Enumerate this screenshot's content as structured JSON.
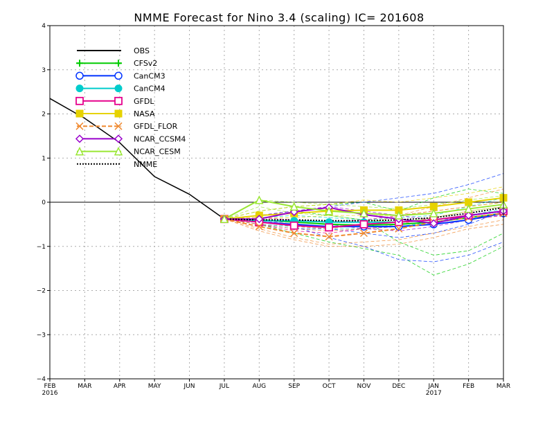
{
  "chart_data": {
    "type": "line",
    "title": "NMME Forecast for Nino 3.4 (scaling) IC= 201608",
    "xlabel": "",
    "ylabel": "",
    "ylim": [
      -4,
      4
    ],
    "yticks": [
      -4,
      -3,
      -2,
      -1,
      0,
      1,
      2,
      3,
      4
    ],
    "ytick_labels": [
      "−4",
      "−3",
      "−2",
      "−1",
      "0",
      "1",
      "2",
      "3",
      "4"
    ],
    "x_ticks": [
      {
        "label": "FEB",
        "year": "2016"
      },
      {
        "label": "MAR",
        "year": ""
      },
      {
        "label": "APR",
        "year": ""
      },
      {
        "label": "MAY",
        "year": ""
      },
      {
        "label": "JUN",
        "year": ""
      },
      {
        "label": "JUL",
        "year": ""
      },
      {
        "label": "AUG",
        "year": ""
      },
      {
        "label": "SEP",
        "year": ""
      },
      {
        "label": "OCT",
        "year": ""
      },
      {
        "label": "NOV",
        "year": ""
      },
      {
        "label": "DEC",
        "year": ""
      },
      {
        "label": "JAN",
        "year": "2017"
      },
      {
        "label": "FEB",
        "year": ""
      },
      {
        "label": "MAR",
        "year": ""
      }
    ],
    "grid": true,
    "legend_position": "top-left",
    "series": [
      {
        "name": "OBS",
        "color": "#000000",
        "marker": "none",
        "dash": "solid",
        "x": [
          "Feb 2016",
          "Mar 2016",
          "Apr 2016",
          "May 2016",
          "Jun 2016",
          "Jul 2016"
        ],
        "values": [
          2.35,
          1.9,
          1.35,
          0.58,
          0.18,
          -0.38
        ]
      },
      {
        "name": "CFSv2",
        "color": "#00cc00",
        "marker": "plus",
        "dash": "solid",
        "x": [
          "Jul 2016",
          "Aug 2016",
          "Sep 2016",
          "Oct 2016",
          "Nov 2016",
          "Dec 2016",
          "Jan 2017",
          "Feb 2017",
          "Mar 2017"
        ],
        "values": [
          -0.38,
          -0.4,
          -0.45,
          -0.5,
          -0.52,
          -0.5,
          -0.45,
          -0.35,
          -0.25
        ]
      },
      {
        "name": "CanCM3",
        "color": "#0033ff",
        "marker": "circle",
        "dash": "solid",
        "x": [
          "Jul 2016",
          "Aug 2016",
          "Sep 2016",
          "Oct 2016",
          "Nov 2016",
          "Dec 2016",
          "Jan 2017",
          "Feb 2017",
          "Mar 2017"
        ],
        "values": [
          -0.38,
          -0.45,
          -0.5,
          -0.55,
          -0.55,
          -0.55,
          -0.5,
          -0.4,
          -0.25
        ]
      },
      {
        "name": "CanCM4",
        "color": "#00cccc",
        "marker": "filled-circle",
        "dash": "solid",
        "x": [
          "Jul 2016",
          "Aug 2016",
          "Sep 2016",
          "Oct 2016",
          "Nov 2016",
          "Dec 2016",
          "Jan 2017",
          "Feb 2017",
          "Mar 2017"
        ],
        "values": [
          -0.38,
          -0.42,
          -0.42,
          -0.45,
          -0.45,
          -0.45,
          -0.4,
          -0.3,
          -0.2
        ]
      },
      {
        "name": "GFDL",
        "color": "#e6008c",
        "marker": "square",
        "dash": "solid",
        "x": [
          "Jul 2016",
          "Aug 2016",
          "Sep 2016",
          "Oct 2016",
          "Nov 2016",
          "Dec 2016",
          "Jan 2017",
          "Feb 2017",
          "Mar 2017"
        ],
        "values": [
          -0.38,
          -0.45,
          -0.53,
          -0.57,
          -0.5,
          -0.45,
          -0.4,
          -0.3,
          -0.2
        ]
      },
      {
        "name": "NASA",
        "color": "#e6d200",
        "marker": "filled-square",
        "dash": "solid",
        "x": [
          "Jul 2016",
          "Aug 2016",
          "Sep 2016",
          "Oct 2016",
          "Nov 2016",
          "Dec 2016",
          "Jan 2017",
          "Feb 2017",
          "Mar 2017"
        ],
        "values": [
          -0.38,
          -0.3,
          -0.25,
          -0.2,
          -0.18,
          -0.18,
          -0.1,
          0.0,
          0.1
        ]
      },
      {
        "name": "GFDL_FLOR",
        "color": "#f08a30",
        "marker": "x",
        "dash": "dashed",
        "x": [
          "Jul 2016",
          "Aug 2016",
          "Sep 2016",
          "Oct 2016",
          "Nov 2016",
          "Dec 2016",
          "Jan 2017",
          "Feb 2017",
          "Mar 2017"
        ],
        "values": [
          -0.38,
          -0.55,
          -0.7,
          -0.78,
          -0.7,
          -0.6,
          -0.45,
          -0.35,
          -0.25
        ]
      },
      {
        "name": "NCAR_CCSM4",
        "color": "#9900cc",
        "marker": "diamond",
        "dash": "solid",
        "x": [
          "Jul 2016",
          "Aug 2016",
          "Sep 2016",
          "Oct 2016",
          "Nov 2016",
          "Dec 2016",
          "Jan 2017",
          "Feb 2017",
          "Mar 2017"
        ],
        "values": [
          -0.38,
          -0.38,
          -0.22,
          -0.12,
          -0.28,
          -0.38,
          -0.48,
          -0.3,
          -0.2
        ]
      },
      {
        "name": "NCAR_CESM",
        "color": "#99e633",
        "marker": "triangle",
        "dash": "solid",
        "x": [
          "Jul 2016",
          "Aug 2016",
          "Sep 2016",
          "Oct 2016",
          "Nov 2016",
          "Dec 2016",
          "Jan 2017",
          "Feb 2017",
          "Mar 2017"
        ],
        "values": [
          -0.38,
          0.05,
          -0.1,
          -0.2,
          -0.25,
          -0.3,
          -0.25,
          -0.15,
          -0.05
        ]
      },
      {
        "name": "NMME",
        "color": "#000000",
        "marker": "none",
        "dash": "dotted",
        "x": [
          "Jul 2016",
          "Aug 2016",
          "Sep 2016",
          "Oct 2016",
          "Nov 2016",
          "Dec 2016",
          "Jan 2017",
          "Feb 2017",
          "Mar 2017"
        ],
        "values": [
          -0.38,
          -0.4,
          -0.4,
          -0.42,
          -0.42,
          -0.4,
          -0.35,
          -0.25,
          -0.12
        ]
      }
    ],
    "ensemble_members": [
      {
        "color": "#00cc00",
        "values": [
          -0.38,
          -0.5,
          -0.7,
          -0.9,
          -1.05,
          -1.2,
          -1.65,
          -1.4,
          -1.0
        ]
      },
      {
        "color": "#00cc00",
        "values": [
          -0.38,
          -0.3,
          -0.2,
          -0.3,
          -0.4,
          -0.9,
          -1.2,
          -1.1,
          -0.7
        ]
      },
      {
        "color": "#00cc00",
        "values": [
          -0.38,
          -0.2,
          -0.1,
          -0.05,
          0.0,
          -0.2,
          0.1,
          0.3,
          0.2
        ]
      },
      {
        "color": "#0033ff",
        "values": [
          -0.38,
          -0.45,
          -0.55,
          -0.8,
          -1.0,
          -1.3,
          -1.35,
          -1.2,
          -0.9
        ]
      },
      {
        "color": "#0033ff",
        "values": [
          -0.38,
          -0.3,
          -0.2,
          -0.1,
          0.0,
          0.1,
          0.2,
          0.4,
          0.65
        ]
      },
      {
        "color": "#0033ff",
        "values": [
          -0.38,
          -0.5,
          -0.6,
          -0.6,
          -0.7,
          -0.8,
          -0.7,
          -0.5,
          -0.2
        ]
      },
      {
        "color": "#00cccc",
        "values": [
          -0.38,
          -0.35,
          -0.3,
          -0.35,
          -0.4,
          -0.35,
          -0.3,
          -0.1,
          0.1
        ]
      },
      {
        "color": "#00cccc",
        "values": [
          -0.38,
          -0.5,
          -0.55,
          -0.6,
          -0.6,
          -0.55,
          -0.45,
          -0.3,
          -0.15
        ]
      },
      {
        "color": "#e6008c",
        "values": [
          -0.38,
          -0.5,
          -0.65,
          -0.7,
          -0.6,
          -0.55,
          -0.5,
          -0.4,
          -0.3
        ]
      },
      {
        "color": "#e6008c",
        "values": [
          -0.38,
          -0.35,
          -0.4,
          -0.45,
          -0.4,
          -0.3,
          -0.2,
          -0.1,
          0.0
        ]
      },
      {
        "color": "#e6d200",
        "values": [
          -0.38,
          -0.2,
          -0.1,
          -0.05,
          0.05,
          0.0,
          0.1,
          0.2,
          0.35
        ]
      },
      {
        "color": "#e6d200",
        "values": [
          -0.38,
          -0.35,
          -0.35,
          -0.3,
          -0.3,
          -0.3,
          -0.2,
          -0.1,
          0.0
        ]
      },
      {
        "color": "#f08a30",
        "values": [
          -0.38,
          -0.6,
          -0.8,
          -0.95,
          -0.9,
          -0.85,
          -0.7,
          -0.55,
          -0.4
        ]
      },
      {
        "color": "#f08a30",
        "values": [
          -0.38,
          -0.5,
          -0.6,
          -0.65,
          -0.6,
          -0.5,
          -0.35,
          -0.2,
          -0.1
        ]
      },
      {
        "color": "#f08a30",
        "values": [
          -0.38,
          -0.45,
          -0.55,
          -0.6,
          -0.5,
          -0.3,
          -0.1,
          0.1,
          0.3
        ]
      },
      {
        "color": "#f08a30",
        "values": [
          -0.38,
          -0.65,
          -0.85,
          -1.0,
          -1.0,
          -0.95,
          -0.8,
          -0.6,
          -0.5
        ]
      },
      {
        "color": "#9900cc",
        "values": [
          -0.38,
          -0.3,
          -0.2,
          -0.1,
          -0.2,
          -0.3,
          -0.4,
          -0.35,
          -0.3
        ]
      },
      {
        "color": "#9900cc",
        "values": [
          -0.38,
          -0.45,
          -0.45,
          -0.5,
          -0.6,
          -0.65,
          -0.55,
          -0.4,
          -0.25
        ]
      },
      {
        "color": "#99e633",
        "values": [
          -0.38,
          0.05,
          0.0,
          -0.05,
          -0.1,
          -0.15,
          -0.05,
          0.05,
          0.15
        ]
      },
      {
        "color": "#99e633",
        "values": [
          -0.38,
          -0.1,
          -0.25,
          -0.3,
          -0.4,
          -0.45,
          -0.35,
          -0.2,
          -0.1
        ]
      }
    ]
  }
}
